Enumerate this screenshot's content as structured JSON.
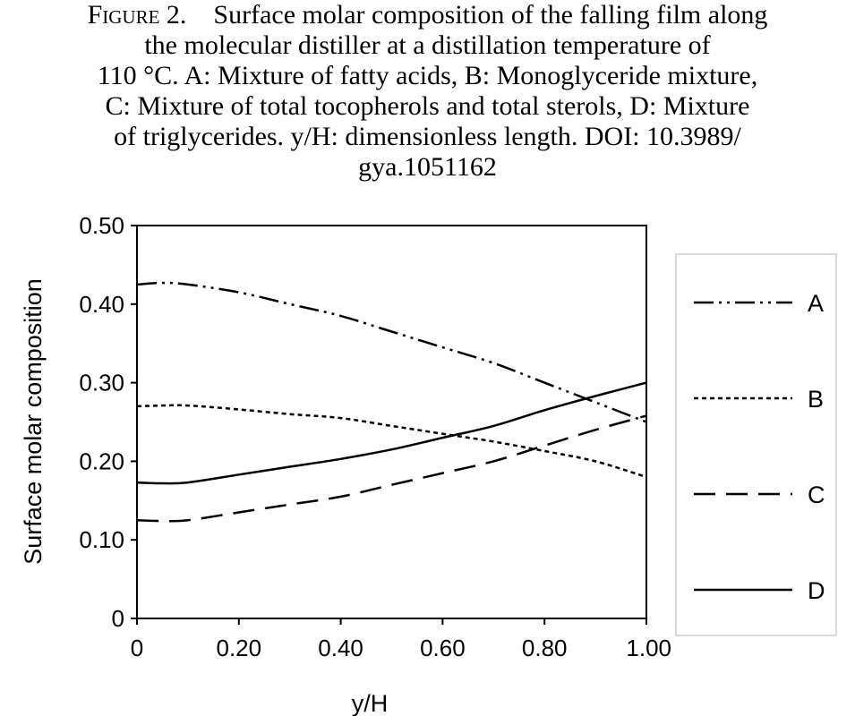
{
  "caption": {
    "figure_label": "Figure 2.",
    "lines": [
      "Surface molar composition of the falling film along",
      "the molecular distiller at a distillation temperature of",
      "110 °C. A: Mixture of fatty acids, B: Monoglyceride mixture,",
      "C: Mixture of total tocopherols and total sterols, D: Mixture",
      "of triglycerides. y/H: dimensionless length. DOI: 10.3989/",
      "gya.1051162"
    ]
  },
  "chart_data": {
    "type": "line",
    "title": "",
    "xlabel": "y/H",
    "ylabel": "Surface molar composition",
    "xlim": [
      0,
      1.0
    ],
    "ylim": [
      0,
      0.5
    ],
    "xticks": [
      "0",
      "0.20",
      "0.40",
      "0.60",
      "0.80",
      "1.00"
    ],
    "yticks": [
      "0",
      "0.10",
      "0.20",
      "0.30",
      "0.40",
      "0.50"
    ],
    "grid": false,
    "legend_position": "right",
    "x": [
      0,
      0.05,
      0.1,
      0.2,
      0.3,
      0.4,
      0.5,
      0.6,
      0.7,
      0.8,
      0.9,
      1.0
    ],
    "series": [
      {
        "name": "A",
        "dash": "dash-dot-dot",
        "values": [
          0.425,
          0.427,
          0.425,
          0.415,
          0.4,
          0.385,
          0.365,
          0.345,
          0.325,
          0.3,
          0.275,
          0.25
        ]
      },
      {
        "name": "B",
        "dash": "short-dash",
        "values": [
          0.27,
          0.271,
          0.271,
          0.266,
          0.26,
          0.255,
          0.245,
          0.235,
          0.225,
          0.213,
          0.2,
          0.18
        ]
      },
      {
        "name": "C",
        "dash": "long-dash",
        "values": [
          0.125,
          0.124,
          0.125,
          0.135,
          0.145,
          0.155,
          0.17,
          0.185,
          0.2,
          0.22,
          0.24,
          0.258
        ]
      },
      {
        "name": "D",
        "dash": "solid",
        "values": [
          0.173,
          0.172,
          0.173,
          0.183,
          0.193,
          0.203,
          0.215,
          0.23,
          0.245,
          0.265,
          0.283,
          0.3
        ]
      }
    ]
  }
}
